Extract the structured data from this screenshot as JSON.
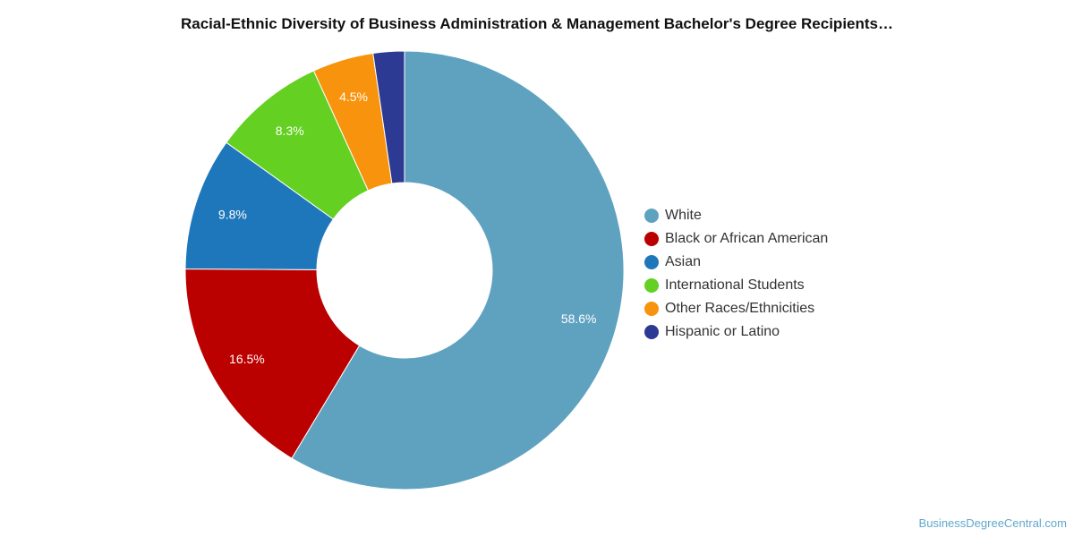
{
  "title": "Racial-Ethnic Diversity of Business Administration & Management Bachelor's Degree Recipients…",
  "watermark": "BusinessDegreeCentral.com",
  "chart_data": {
    "type": "pie",
    "style": "donut",
    "title": "Racial-Ethnic Diversity of Business Administration & Management Bachelor's Degree Recipients…",
    "legend_position": "right",
    "series": [
      {
        "name": "White",
        "value": 58.6,
        "label": "58.6%",
        "color": "#5fa2c0"
      },
      {
        "name": "Black or African American",
        "value": 16.5,
        "label": "16.5%",
        "color": "#bb0000"
      },
      {
        "name": "Asian",
        "value": 9.8,
        "label": "9.8%",
        "color": "#1f77bb"
      },
      {
        "name": "International Students",
        "value": 8.3,
        "label": "8.3%",
        "color": "#63d022"
      },
      {
        "name": "Other Races/Ethnicities",
        "value": 4.5,
        "label": "4.5%",
        "color": "#f7930c"
      },
      {
        "name": "Hispanic or Latino",
        "value": 2.3,
        "label": "",
        "color": "#2c3a94"
      }
    ]
  }
}
